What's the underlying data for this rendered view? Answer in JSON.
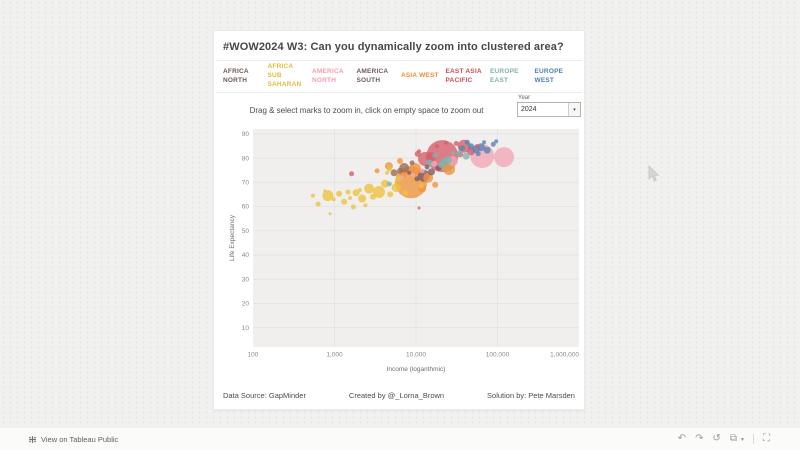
{
  "header": {
    "title": "#WOW2024 W3: Can you dynamically zoom into clustered area?"
  },
  "region_filters": [
    {
      "label": "Africa North",
      "color": "#6b5a50"
    },
    {
      "label": "Africa Sub Saharan",
      "color": "#e5b93c"
    },
    {
      "label": "America North",
      "color": "#f2a0ae"
    },
    {
      "label": "America South",
      "color": "#6f5560"
    },
    {
      "label": "Asia West",
      "color": "#ef8a3c"
    },
    {
      "label": "East Asia Pacific",
      "color": "#c94f53"
    },
    {
      "label": "Europe East",
      "color": "#7fb3b0"
    },
    {
      "label": "Europe West",
      "color": "#4a7fb0"
    }
  ],
  "instructions": "Drag & select marks to zoom in, click on empty space to zoom out",
  "year_filter": {
    "label": "Year",
    "value": "2024",
    "caret": "▾"
  },
  "chart_data": {
    "type": "scatter",
    "xlabel": "Income (logarithmic)",
    "ylabel": "Life Expectancy",
    "x_scale": "log",
    "x_domain": [
      100,
      1000000
    ],
    "y_domain": [
      2,
      92
    ],
    "x_ticks": [
      {
        "value": 100,
        "label": "100"
      },
      {
        "value": 1000,
        "label": "1,000"
      },
      {
        "value": 10000,
        "label": "10,000"
      },
      {
        "value": 100000,
        "label": "100,000"
      },
      {
        "value": 1000000,
        "label": "1,000,000"
      }
    ],
    "y_ticks": [
      10,
      20,
      30,
      40,
      50,
      60,
      70,
      80,
      90
    ],
    "grid": true,
    "plot_bg": "#f0efee",
    "grid_color": "#e3e2e0",
    "tick_color": "#8a8a88",
    "point_format": [
      "income",
      "life_expectancy",
      "radius_px"
    ],
    "series": [
      {
        "name": "Africa North",
        "color": "#9b6a54",
        "points": [
          [
            7160,
            75.9,
            5
          ],
          [
            5390,
            73.9,
            3.5
          ],
          [
            6360,
            74.7,
            3
          ],
          [
            8960,
            78,
            2.5
          ]
        ]
      },
      {
        "name": "Africa Sub Saharan",
        "color": "#eec33e",
        "points": [
          [
            545,
            64.5,
            2
          ],
          [
            630,
            61,
            2.5
          ],
          [
            760,
            66.5,
            1.5
          ],
          [
            830,
            64.5,
            5.5
          ],
          [
            880,
            57,
            1.5
          ],
          [
            980,
            63,
            2
          ],
          [
            1140,
            65.3,
            3
          ],
          [
            1310,
            62,
            3
          ],
          [
            1470,
            66,
            2.5
          ],
          [
            1550,
            63.5,
            2
          ],
          [
            1700,
            59.8,
            2.5
          ],
          [
            1840,
            65.7,
            3.5
          ],
          [
            2050,
            66.8,
            2
          ],
          [
            2180,
            63.3,
            4
          ],
          [
            2400,
            60.5,
            2
          ],
          [
            2660,
            67.4,
            5
          ],
          [
            2970,
            64,
            3
          ],
          [
            3520,
            66,
            6
          ],
          [
            4180,
            69.4,
            4
          ],
          [
            4700,
            75.5,
            2.5
          ],
          [
            4830,
            65,
            3
          ],
          [
            5710,
            67.8,
            4.5
          ],
          [
            6190,
            71.4,
            3
          ],
          [
            7370,
            65.7,
            3
          ],
          [
            4420,
            73.9,
            2
          ],
          [
            11600,
            68.5,
            2.5
          ]
        ]
      },
      {
        "name": "America North",
        "color": "#f3a8b6",
        "points": [
          [
            64900,
            80.8,
            12
          ],
          [
            28400,
            78.8,
            5
          ],
          [
            51100,
            83.3,
            4
          ],
          [
            16700,
            77.6,
            3
          ],
          [
            11900,
            74.7,
            2.5
          ],
          [
            9200,
            73.1,
            2
          ],
          [
            120000,
            80.4,
            10
          ],
          [
            6800,
            72,
            2
          ]
        ]
      },
      {
        "name": "America South",
        "color": "#7d5a66",
        "points": [
          [
            12500,
            72.7,
            6
          ],
          [
            15500,
            74.3,
            3.5
          ],
          [
            18900,
            75.9,
            3
          ],
          [
            13700,
            76.3,
            2.5
          ],
          [
            10300,
            71.4,
            2.5
          ],
          [
            8230,
            73.9,
            2
          ]
        ]
      },
      {
        "name": "Asia West",
        "color": "#f0953f",
        "points": [
          [
            8700,
            70,
            16
          ],
          [
            4650,
            76.7,
            4
          ],
          [
            6360,
            78.8,
            3
          ],
          [
            9760,
            75.5,
            6
          ],
          [
            11900,
            67.4,
            4
          ],
          [
            14100,
            71.9,
            5
          ],
          [
            25500,
            75.5,
            6
          ],
          [
            3330,
            74.7,
            2.5
          ],
          [
            17200,
            69,
            3
          ],
          [
            7000,
            73,
            3
          ]
        ]
      },
      {
        "name": "East Asia Pacific",
        "color": "#d4606b",
        "points": [
          [
            21000,
            80.8,
            16
          ],
          [
            15200,
            80.5,
            5
          ],
          [
            12900,
            79.6,
            7
          ],
          [
            38900,
            84.9,
            6.5
          ],
          [
            47300,
            82.8,
            4
          ],
          [
            31200,
            86,
            2.5
          ],
          [
            34800,
            81.6,
            3
          ],
          [
            18100,
            84.9,
            2
          ],
          [
            23300,
            86.3,
            2
          ],
          [
            56200,
            84.9,
            2.2
          ],
          [
            10900,
            82.8,
            2
          ],
          [
            1620,
            73.5,
            2.5
          ],
          [
            10900,
            59.4,
            1.5
          ],
          [
            10500,
            81.7,
            3
          ]
        ]
      },
      {
        "name": "Europe East",
        "color": "#80b4af",
        "points": [
          [
            41300,
            80.8,
            3.5
          ],
          [
            33800,
            82,
            3
          ],
          [
            24600,
            79.2,
            4
          ],
          [
            20200,
            77.2,
            3
          ],
          [
            17100,
            81.2,
            2.5
          ],
          [
            14500,
            78,
            3.5
          ],
          [
            28400,
            82,
            2
          ],
          [
            23900,
            77.2,
            7
          ],
          [
            4700,
            69.3,
            2.5
          ]
        ]
      },
      {
        "name": "Europe West",
        "color": "#5886b3",
        "points": [
          [
            47300,
            84.9,
            3
          ],
          [
            54700,
            83.7,
            4
          ],
          [
            63000,
            84.5,
            4
          ],
          [
            74800,
            83.3,
            3.5
          ],
          [
            88700,
            85.7,
            2.5
          ],
          [
            96400,
            86.9,
            2
          ],
          [
            42500,
            86.5,
            2.5
          ],
          [
            68500,
            86.5,
            2
          ],
          [
            36700,
            84.1,
            3
          ],
          [
            58000,
            81.8,
            2.5
          ]
        ]
      }
    ]
  },
  "footer": {
    "source": "Data Source: GapMinder",
    "created": "Created by @_Lorna_Brown",
    "solution": "Solution by: Pete Marsden"
  },
  "bottom_bar": {
    "view_text": "View on Tableau Public",
    "toolbar": [
      {
        "name": "undo-icon",
        "glyph": "↶"
      },
      {
        "name": "redo-icon",
        "glyph": "↷"
      },
      {
        "name": "reset-icon",
        "glyph": "↺"
      },
      {
        "name": "share-icon",
        "glyph": "⧉"
      }
    ],
    "share_caret": "▾",
    "fullscreen_glyph": "⛶"
  }
}
